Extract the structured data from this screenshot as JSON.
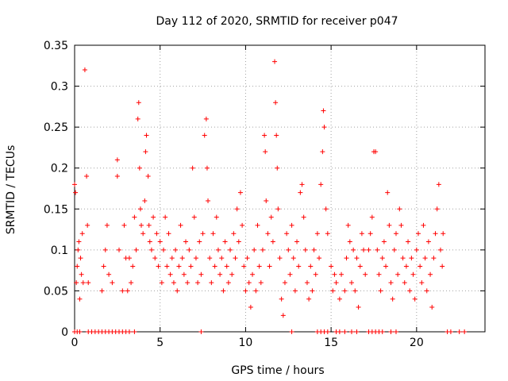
{
  "chart_data": {
    "type": "scatter",
    "title": "Day 112 of 2020, SRMTID for receiver p047",
    "xlabel": "GPS time / hours",
    "ylabel": "SRMTID / TECUs",
    "xlim": [
      0,
      24
    ],
    "ylim": [
      0,
      0.35
    ],
    "xticks": [
      0,
      5,
      10,
      15,
      20
    ],
    "yticks": [
      0,
      0.05,
      0.1,
      0.15,
      0.2,
      0.25,
      0.3,
      0.35
    ],
    "xtick_labels": [
      "0",
      "5",
      "10",
      "15",
      "20"
    ],
    "ytick_labels": [
      "0",
      "0.05",
      "0.1",
      "0.15",
      "0.2",
      "0.25",
      "0.3",
      "0.35"
    ],
    "grid": true,
    "marker": "+",
    "color": "#ff0000",
    "series": [
      {
        "name": "SRMTID",
        "points": [
          [
            0.0,
            0.18
          ],
          [
            0.05,
            0.17
          ],
          [
            0.1,
            0.06
          ],
          [
            0.15,
            0.08
          ],
          [
            0.2,
            0.1
          ],
          [
            0.25,
            0.11
          ],
          [
            0.3,
            0.04
          ],
          [
            0.35,
            0.09
          ],
          [
            0.4,
            0.07
          ],
          [
            0.45,
            0.12
          ],
          [
            0.5,
            0.06
          ],
          [
            0.6,
            0.32
          ],
          [
            0.7,
            0.19
          ],
          [
            0.75,
            0.13
          ],
          [
            0.8,
            0.06
          ],
          [
            1.6,
            0.05
          ],
          [
            1.7,
            0.08
          ],
          [
            1.8,
            0.1
          ],
          [
            1.9,
            0.13
          ],
          [
            2.0,
            0.07
          ],
          [
            2.2,
            0.06
          ],
          [
            2.5,
            0.21
          ],
          [
            2.5,
            0.19
          ],
          [
            2.6,
            0.1
          ],
          [
            2.8,
            0.05
          ],
          [
            2.9,
            0.13
          ],
          [
            3.0,
            0.09
          ],
          [
            3.1,
            0.05
          ],
          [
            3.2,
            0.09
          ],
          [
            3.3,
            0.06
          ],
          [
            3.4,
            0.08
          ],
          [
            3.5,
            0.14
          ],
          [
            3.6,
            0.1
          ],
          [
            3.7,
            0.26
          ],
          [
            3.75,
            0.28
          ],
          [
            3.8,
            0.2
          ],
          [
            3.85,
            0.15
          ],
          [
            3.9,
            0.13
          ],
          [
            4.0,
            0.12
          ],
          [
            4.1,
            0.16
          ],
          [
            4.15,
            0.22
          ],
          [
            4.2,
            0.24
          ],
          [
            4.3,
            0.19
          ],
          [
            4.35,
            0.13
          ],
          [
            4.4,
            0.11
          ],
          [
            4.5,
            0.1
          ],
          [
            4.6,
            0.14
          ],
          [
            4.7,
            0.09
          ],
          [
            4.8,
            0.12
          ],
          [
            4.9,
            0.08
          ],
          [
            5.0,
            0.11
          ],
          [
            5.1,
            0.06
          ],
          [
            5.2,
            0.1
          ],
          [
            5.3,
            0.14
          ],
          [
            5.4,
            0.08
          ],
          [
            5.5,
            0.12
          ],
          [
            5.6,
            0.07
          ],
          [
            5.7,
            0.09
          ],
          [
            5.8,
            0.06
          ],
          [
            5.9,
            0.1
          ],
          [
            6.0,
            0.05
          ],
          [
            6.1,
            0.08
          ],
          [
            6.2,
            0.13
          ],
          [
            6.3,
            0.09
          ],
          [
            6.4,
            0.07
          ],
          [
            6.5,
            0.11
          ],
          [
            6.6,
            0.06
          ],
          [
            6.7,
            0.1
          ],
          [
            6.8,
            0.08
          ],
          [
            6.9,
            0.2
          ],
          [
            7.0,
            0.14
          ],
          [
            7.1,
            0.09
          ],
          [
            7.2,
            0.06
          ],
          [
            7.3,
            0.11
          ],
          [
            7.4,
            0.07
          ],
          [
            7.5,
            0.12
          ],
          [
            7.6,
            0.24
          ],
          [
            7.7,
            0.26
          ],
          [
            7.75,
            0.2
          ],
          [
            7.8,
            0.16
          ],
          [
            7.9,
            0.09
          ],
          [
            8.0,
            0.06
          ],
          [
            8.1,
            0.12
          ],
          [
            8.2,
            0.08
          ],
          [
            8.3,
            0.14
          ],
          [
            8.4,
            0.1
          ],
          [
            8.5,
            0.07
          ],
          [
            8.6,
            0.09
          ],
          [
            8.7,
            0.05
          ],
          [
            8.8,
            0.11
          ],
          [
            8.9,
            0.08
          ],
          [
            9.0,
            0.06
          ],
          [
            9.1,
            0.1
          ],
          [
            9.2,
            0.07
          ],
          [
            9.3,
            0.12
          ],
          [
            9.4,
            0.09
          ],
          [
            9.5,
            0.15
          ],
          [
            9.6,
            0.11
          ],
          [
            9.7,
            0.17
          ],
          [
            9.8,
            0.13
          ],
          [
            9.9,
            0.08
          ],
          [
            10.0,
            0.05
          ],
          [
            10.1,
            0.09
          ],
          [
            10.2,
            0.06
          ],
          [
            10.3,
            0.03
          ],
          [
            10.4,
            0.07
          ],
          [
            10.5,
            0.1
          ],
          [
            10.6,
            0.05
          ],
          [
            10.7,
            0.13
          ],
          [
            10.8,
            0.08
          ],
          [
            10.9,
            0.06
          ],
          [
            11.0,
            0.1
          ],
          [
            11.1,
            0.24
          ],
          [
            11.15,
            0.22
          ],
          [
            11.2,
            0.16
          ],
          [
            11.3,
            0.12
          ],
          [
            11.4,
            0.08
          ],
          [
            11.5,
            0.14
          ],
          [
            11.6,
            0.11
          ],
          [
            11.7,
            0.33
          ],
          [
            11.75,
            0.28
          ],
          [
            11.8,
            0.24
          ],
          [
            11.85,
            0.2
          ],
          [
            11.9,
            0.15
          ],
          [
            12.0,
            0.09
          ],
          [
            12.1,
            0.04
          ],
          [
            12.2,
            0.02
          ],
          [
            12.3,
            0.06
          ],
          [
            12.4,
            0.12
          ],
          [
            12.5,
            0.1
          ],
          [
            12.6,
            0.07
          ],
          [
            12.7,
            0.13
          ],
          [
            12.8,
            0.09
          ],
          [
            12.9,
            0.05
          ],
          [
            13.0,
            0.11
          ],
          [
            13.1,
            0.08
          ],
          [
            13.2,
            0.17
          ],
          [
            13.3,
            0.18
          ],
          [
            13.4,
            0.14
          ],
          [
            13.5,
            0.1
          ],
          [
            13.6,
            0.06
          ],
          [
            13.7,
            0.04
          ],
          [
            13.8,
            0.08
          ],
          [
            13.9,
            0.05
          ],
          [
            14.0,
            0.1
          ],
          [
            14.1,
            0.07
          ],
          [
            14.2,
            0.12
          ],
          [
            14.3,
            0.09
          ],
          [
            14.4,
            0.18
          ],
          [
            14.5,
            0.22
          ],
          [
            14.55,
            0.27
          ],
          [
            14.6,
            0.25
          ],
          [
            14.7,
            0.15
          ],
          [
            14.8,
            0.12
          ],
          [
            15.0,
            0.08
          ],
          [
            15.1,
            0.05
          ],
          [
            15.2,
            0.07
          ],
          [
            15.3,
            0.06
          ],
          [
            15.5,
            0.04
          ],
          [
            15.6,
            0.07
          ],
          [
            15.8,
            0.05
          ],
          [
            15.9,
            0.09
          ],
          [
            16.0,
            0.13
          ],
          [
            16.1,
            0.11
          ],
          [
            16.2,
            0.06
          ],
          [
            16.3,
            0.1
          ],
          [
            16.4,
            0.05
          ],
          [
            16.5,
            0.09
          ],
          [
            16.6,
            0.03
          ],
          [
            16.7,
            0.08
          ],
          [
            16.8,
            0.12
          ],
          [
            16.9,
            0.1
          ],
          [
            17.0,
            0.07
          ],
          [
            17.2,
            0.1
          ],
          [
            17.3,
            0.12
          ],
          [
            17.4,
            0.14
          ],
          [
            17.5,
            0.22
          ],
          [
            17.6,
            0.22
          ],
          [
            17.7,
            0.1
          ],
          [
            17.8,
            0.07
          ],
          [
            17.9,
            0.05
          ],
          [
            18.0,
            0.09
          ],
          [
            18.1,
            0.11
          ],
          [
            18.2,
            0.08
          ],
          [
            18.3,
            0.17
          ],
          [
            18.4,
            0.13
          ],
          [
            18.5,
            0.06
          ],
          [
            18.6,
            0.04
          ],
          [
            18.7,
            0.1
          ],
          [
            18.8,
            0.12
          ],
          [
            18.9,
            0.07
          ],
          [
            19.0,
            0.15
          ],
          [
            19.1,
            0.13
          ],
          [
            19.2,
            0.09
          ],
          [
            19.3,
            0.06
          ],
          [
            19.4,
            0.08
          ],
          [
            19.5,
            0.11
          ],
          [
            19.6,
            0.05
          ],
          [
            19.7,
            0.09
          ],
          [
            19.8,
            0.07
          ],
          [
            19.9,
            0.04
          ],
          [
            20.0,
            0.1
          ],
          [
            20.1,
            0.12
          ],
          [
            20.2,
            0.08
          ],
          [
            20.3,
            0.06
          ],
          [
            20.4,
            0.13
          ],
          [
            20.5,
            0.09
          ],
          [
            20.6,
            0.05
          ],
          [
            20.7,
            0.11
          ],
          [
            20.8,
            0.07
          ],
          [
            20.9,
            0.03
          ],
          [
            21.0,
            0.09
          ],
          [
            21.1,
            0.12
          ],
          [
            21.2,
            0.15
          ],
          [
            21.3,
            0.18
          ],
          [
            21.4,
            0.1
          ],
          [
            21.5,
            0.08
          ],
          [
            21.55,
            0.12
          ],
          [
            0.0,
            0
          ],
          [
            0.15,
            0
          ],
          [
            0.3,
            0
          ],
          [
            0.8,
            0
          ],
          [
            1.0,
            0
          ],
          [
            1.2,
            0
          ],
          [
            1.4,
            0
          ],
          [
            1.6,
            0
          ],
          [
            1.8,
            0
          ],
          [
            2.0,
            0
          ],
          [
            2.2,
            0
          ],
          [
            2.4,
            0
          ],
          [
            2.6,
            0
          ],
          [
            2.8,
            0
          ],
          [
            3.0,
            0
          ],
          [
            3.2,
            0
          ],
          [
            3.5,
            0
          ],
          [
            7.4,
            0
          ],
          [
            12.7,
            0
          ],
          [
            14.2,
            0
          ],
          [
            14.4,
            0
          ],
          [
            14.6,
            0
          ],
          [
            14.8,
            0
          ],
          [
            15.3,
            0
          ],
          [
            15.5,
            0
          ],
          [
            15.8,
            0
          ],
          [
            16.2,
            0
          ],
          [
            16.5,
            0
          ],
          [
            17.2,
            0
          ],
          [
            17.4,
            0
          ],
          [
            17.6,
            0
          ],
          [
            17.8,
            0
          ],
          [
            18.0,
            0
          ],
          [
            18.5,
            0
          ],
          [
            18.8,
            0
          ],
          [
            21.8,
            0
          ],
          [
            22.0,
            0
          ],
          [
            22.5,
            0
          ],
          [
            22.8,
            0
          ]
        ]
      }
    ]
  }
}
